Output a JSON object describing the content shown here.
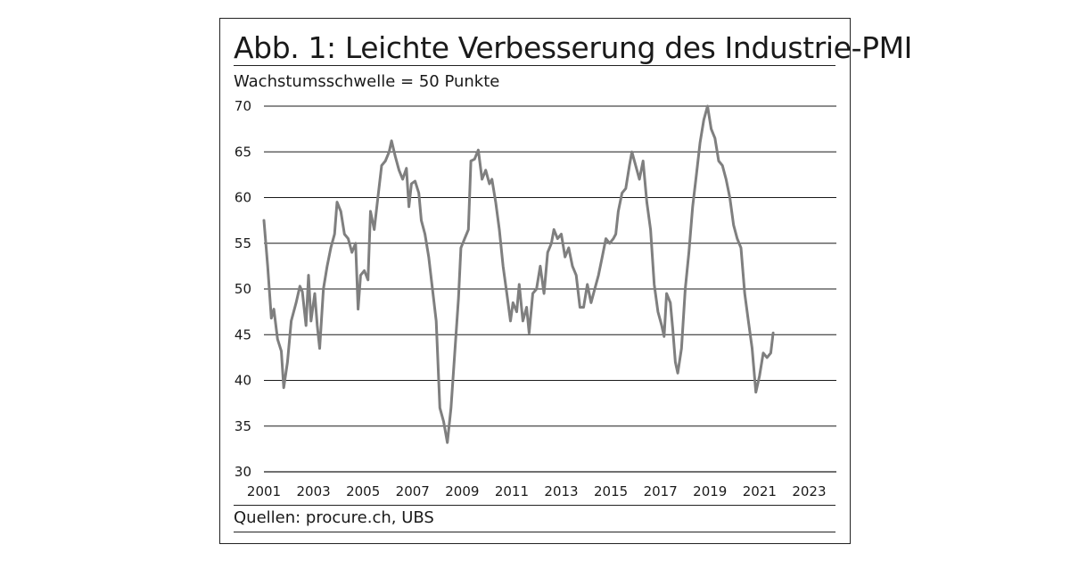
{
  "chart_data": {
    "type": "line",
    "title": "Abb. 1: Leichte Verbesserung des Industrie-PMI",
    "subtitle": "Wachstumsschwelle = 50 Punkte",
    "source": "Quellen: procure.ch, UBS",
    "xlabel": "",
    "ylabel": "",
    "xlim": [
      2001,
      2024.1
    ],
    "ylim": [
      30,
      70
    ],
    "yticks": [
      30,
      35,
      40,
      45,
      50,
      55,
      60,
      65,
      70
    ],
    "xticks": [
      2001,
      2003,
      2005,
      2007,
      2009,
      2011,
      2013,
      2015,
      2017,
      2019,
      2021,
      2023
    ],
    "grid": "horizontal",
    "line_color": "#7f7f7f",
    "series": [
      {
        "values": [
          [
            2001.0,
            57.5
          ],
          [
            2001.15,
            52.5
          ],
          [
            2001.3,
            46.8
          ],
          [
            2001.4,
            47.8
          ],
          [
            2001.55,
            44.5
          ],
          [
            2001.7,
            43.2
          ],
          [
            2001.8,
            39.2
          ],
          [
            2001.95,
            42.0
          ],
          [
            2002.1,
            46.5
          ],
          [
            2002.3,
            48.5
          ],
          [
            2002.45,
            50.3
          ],
          [
            2002.55,
            49.7
          ],
          [
            2002.7,
            46.0
          ],
          [
            2002.8,
            51.5
          ],
          [
            2002.9,
            46.5
          ],
          [
            2003.05,
            49.5
          ],
          [
            2003.15,
            46.0
          ],
          [
            2003.25,
            43.5
          ],
          [
            2003.4,
            50.0
          ],
          [
            2003.55,
            52.5
          ],
          [
            2003.7,
            54.5
          ],
          [
            2003.85,
            56.0
          ],
          [
            2003.95,
            59.5
          ],
          [
            2004.1,
            58.5
          ],
          [
            2004.25,
            56.0
          ],
          [
            2004.4,
            55.5
          ],
          [
            2004.55,
            54.0
          ],
          [
            2004.7,
            55.0
          ],
          [
            2004.8,
            47.8
          ],
          [
            2004.9,
            51.5
          ],
          [
            2005.05,
            52.0
          ],
          [
            2005.2,
            51.0
          ],
          [
            2005.3,
            58.5
          ],
          [
            2005.45,
            56.5
          ],
          [
            2005.6,
            60.0
          ],
          [
            2005.75,
            63.5
          ],
          [
            2005.9,
            64.0
          ],
          [
            2006.05,
            65.0
          ],
          [
            2006.15,
            66.2
          ],
          [
            2006.3,
            64.5
          ],
          [
            2006.45,
            63.0
          ],
          [
            2006.6,
            62.0
          ],
          [
            2006.75,
            63.2
          ],
          [
            2006.85,
            59.0
          ],
          [
            2006.95,
            61.5
          ],
          [
            2007.1,
            61.8
          ],
          [
            2007.25,
            60.5
          ],
          [
            2007.35,
            57.5
          ],
          [
            2007.5,
            56.0
          ],
          [
            2007.65,
            53.5
          ],
          [
            2007.8,
            50.0
          ],
          [
            2007.95,
            46.5
          ],
          [
            2008.1,
            37.0
          ],
          [
            2008.25,
            35.5
          ],
          [
            2008.4,
            33.2
          ],
          [
            2008.55,
            37.0
          ],
          [
            2008.7,
            43.0
          ],
          [
            2008.85,
            49.0
          ],
          [
            2008.95,
            54.5
          ],
          [
            2009.1,
            55.5
          ],
          [
            2009.25,
            56.5
          ],
          [
            2009.35,
            64.0
          ],
          [
            2009.5,
            64.2
          ],
          [
            2009.65,
            65.2
          ],
          [
            2009.8,
            62.0
          ],
          [
            2009.95,
            63.0
          ],
          [
            2010.1,
            61.5
          ],
          [
            2010.2,
            62.0
          ],
          [
            2010.35,
            59.5
          ],
          [
            2010.5,
            56.5
          ],
          [
            2010.65,
            52.5
          ],
          [
            2010.8,
            49.5
          ],
          [
            2010.95,
            46.5
          ],
          [
            2011.05,
            48.5
          ],
          [
            2011.2,
            47.5
          ],
          [
            2011.3,
            50.5
          ],
          [
            2011.45,
            46.5
          ],
          [
            2011.6,
            48.0
          ],
          [
            2011.7,
            45.2
          ],
          [
            2011.85,
            49.5
          ],
          [
            2012.0,
            50.0
          ],
          [
            2012.15,
            52.5
          ],
          [
            2012.3,
            49.5
          ],
          [
            2012.45,
            54.0
          ],
          [
            2012.6,
            55.0
          ],
          [
            2012.7,
            56.5
          ],
          [
            2012.85,
            55.5
          ],
          [
            2013.0,
            56.0
          ],
          [
            2013.15,
            53.5
          ],
          [
            2013.3,
            54.5
          ],
          [
            2013.45,
            52.5
          ],
          [
            2013.6,
            51.5
          ],
          [
            2013.75,
            48.0
          ],
          [
            2013.9,
            48.0
          ],
          [
            2014.05,
            50.5
          ],
          [
            2014.2,
            48.5
          ],
          [
            2014.35,
            50.0
          ],
          [
            2014.5,
            51.5
          ],
          [
            2014.65,
            53.5
          ],
          [
            2014.8,
            55.5
          ],
          [
            2014.95,
            55.0
          ],
          [
            2015.1,
            55.5
          ],
          [
            2015.2,
            56.0
          ],
          [
            2015.3,
            58.5
          ],
          [
            2015.45,
            60.5
          ],
          [
            2015.6,
            61.0
          ],
          [
            2015.75,
            63.5
          ],
          [
            2015.85,
            65.0
          ],
          [
            2016.0,
            63.5
          ],
          [
            2016.15,
            62.0
          ],
          [
            2016.3,
            64.0
          ],
          [
            2016.45,
            59.5
          ],
          [
            2016.6,
            56.5
          ],
          [
            2016.75,
            50.5
          ],
          [
            2016.9,
            47.5
          ],
          [
            2017.05,
            46.0
          ],
          [
            2017.15,
            44.8
          ],
          [
            2017.25,
            49.5
          ],
          [
            2017.4,
            48.5
          ],
          [
            2017.5,
            45.5
          ],
          [
            2017.6,
            42.0
          ],
          [
            2017.7,
            40.8
          ],
          [
            2017.85,
            43.5
          ],
          [
            2018.0,
            50.0
          ],
          [
            2018.15,
            54.0
          ],
          [
            2018.3,
            59.0
          ],
          [
            2018.45,
            62.5
          ],
          [
            2018.6,
            66.0
          ],
          [
            2018.75,
            68.5
          ],
          [
            2018.9,
            70.0
          ],
          [
            2019.05,
            67.5
          ],
          [
            2019.2,
            66.5
          ],
          [
            2019.35,
            64.0
          ],
          [
            2019.5,
            63.5
          ],
          [
            2019.65,
            62.0
          ],
          [
            2019.8,
            60.0
          ],
          [
            2019.95,
            57.0
          ],
          [
            2020.1,
            55.5
          ],
          [
            2020.25,
            54.5
          ],
          [
            2020.4,
            49.5
          ],
          [
            2020.55,
            46.5
          ],
          [
            2020.7,
            43.5
          ],
          [
            2020.85,
            38.7
          ],
          [
            2021.0,
            40.5
          ],
          [
            2021.15,
            43.0
          ],
          [
            2021.3,
            42.5
          ],
          [
            2021.45,
            43.0
          ],
          [
            2021.55,
            45.2
          ]
        ]
      }
    ]
  }
}
